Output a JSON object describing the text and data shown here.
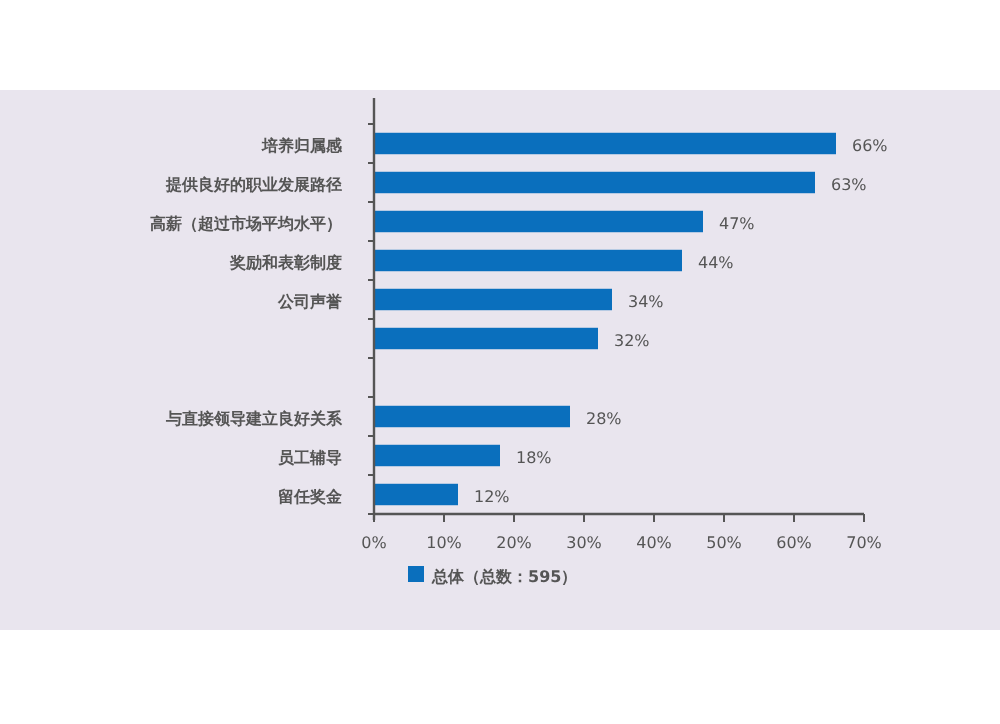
{
  "chart_data": {
    "type": "bar",
    "orientation": "horizontal",
    "categories": [
      "培养归属感",
      "提供良好的职业发展路径",
      "高薪（超过市场平均水平）",
      "奖励和表彰制度",
      "公司声誉",
      null,
      null,
      "与直接领导建立良好关系",
      "员工辅导",
      "留任奖金"
    ],
    "series": [
      {
        "name": "总体（总数：595）",
        "color": "#0a6fbd",
        "values": [
          66,
          63,
          47,
          44,
          34,
          32,
          null,
          28,
          18,
          12
        ],
        "value_labels": [
          "66%",
          "63%",
          "47%",
          "44%",
          "34%",
          "32%",
          null,
          "28%",
          "18%",
          "12%"
        ]
      }
    ],
    "xlim": [
      0,
      70
    ],
    "xticks": [
      {
        "value": 0,
        "label": "0%"
      },
      {
        "value": 10,
        "label": "10%"
      },
      {
        "value": 20,
        "label": "20%"
      },
      {
        "value": 30,
        "label": "30%"
      },
      {
        "value": 40,
        "label": "40%"
      },
      {
        "value": 50,
        "label": "50%"
      },
      {
        "value": 60,
        "label": "60%"
      },
      {
        "value": 70,
        "label": "70%"
      }
    ],
    "legend": "bottom",
    "grid": false
  }
}
